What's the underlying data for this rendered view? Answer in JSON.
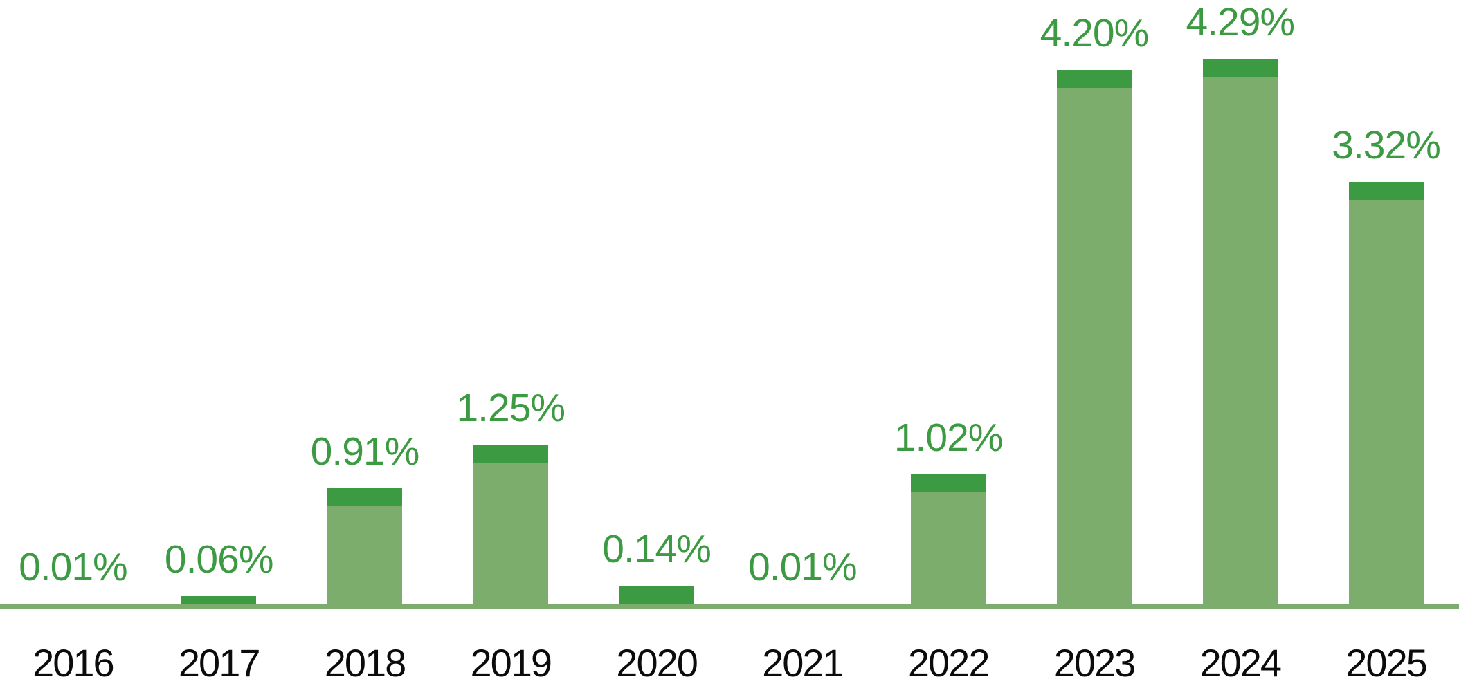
{
  "chart_data": {
    "type": "bar",
    "title": "",
    "xlabel": "",
    "ylabel": "",
    "unit": "%",
    "grid": false,
    "legend": null,
    "background": "#ffffff",
    "categories": [
      "2016",
      "2017",
      "2018",
      "2019",
      "2020",
      "2021",
      "2022",
      "2023",
      "2024",
      "2025"
    ],
    "values": [
      0.01,
      0.06,
      0.91,
      1.25,
      0.14,
      0.01,
      1.02,
      4.2,
      4.29,
      3.32
    ],
    "labels": [
      "0.01%",
      "0.06%",
      "0.91%",
      "1.25%",
      "0.14%",
      "0.01%",
      "1.02%",
      "4.20%",
      "4.29%",
      "3.32%"
    ],
    "ylim": [
      0,
      4.75
    ],
    "cap_value": 0.14,
    "colors": {
      "bar_body": "#7dad6c",
      "bar_cap": "#3c9a43",
      "axis_line": "#7dad6c",
      "value_label": "#3c9a43",
      "tick_label": "#0b0b0b"
    }
  }
}
